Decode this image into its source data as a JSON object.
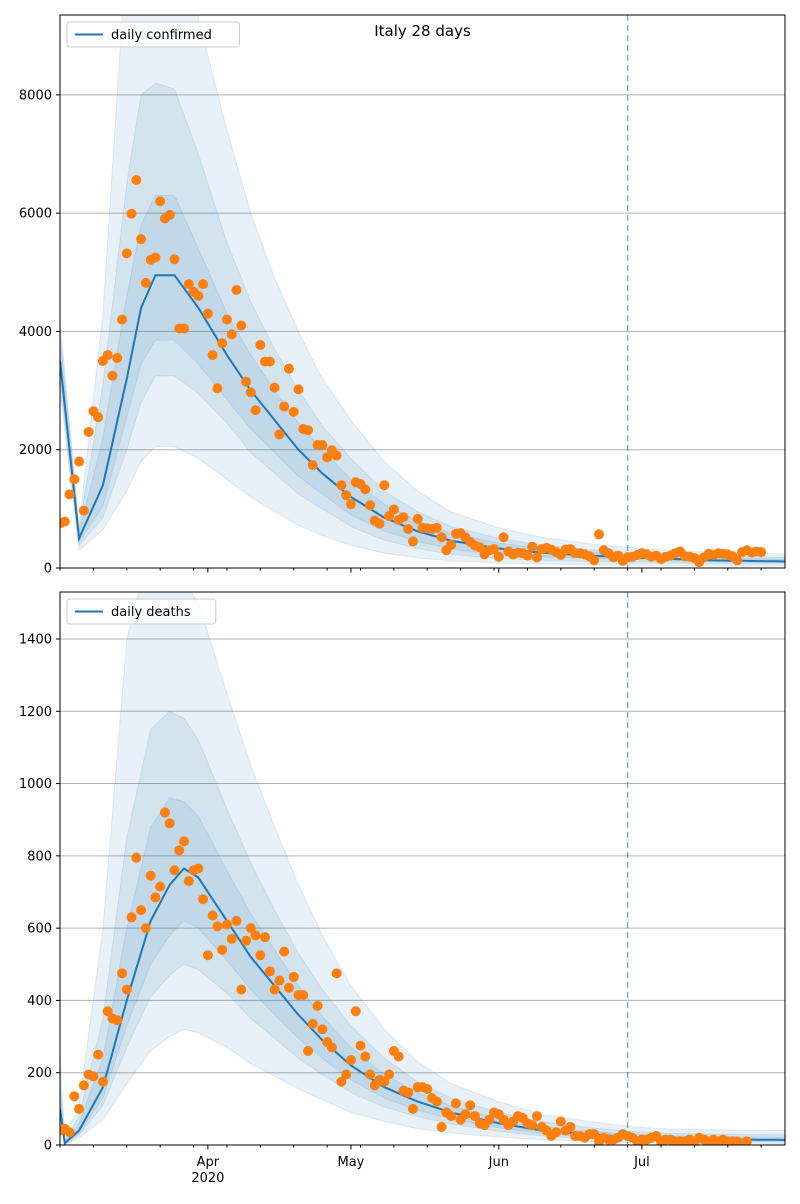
{
  "chart_data": [
    {
      "type": "line",
      "title": "Italy 28 days",
      "xlabel": "",
      "ylabel": "",
      "x_start": "2020-03-01",
      "x_end": "2020-07-31",
      "forecast_start": "2020-06-28",
      "x_ticks": [
        "Apr",
        "May",
        "Jun",
        "Jul"
      ],
      "x_tick_dates": [
        "2020-04-01",
        "2020-05-01",
        "2020-06-01",
        "2020-07-01"
      ],
      "x_year_label": "2020",
      "ylim": [
        0,
        9350
      ],
      "y_ticks": [
        0,
        2000,
        4000,
        6000,
        8000
      ],
      "grid": "y",
      "legend_position": "top-left",
      "colors": {
        "line": "#1f77b4",
        "band": "#1f77b4",
        "points": "#ff7f0e",
        "forecast_line": "#1f77b4"
      },
      "series": [
        {
          "name": "daily confirmed",
          "kind": "line",
          "x": [
            "2020-03-01",
            "2020-03-05",
            "2020-03-10",
            "2020-03-15",
            "2020-03-18",
            "2020-03-21",
            "2020-03-25",
            "2020-03-30",
            "2020-04-05",
            "2020-04-10",
            "2020-04-15",
            "2020-04-20",
            "2020-04-25",
            "2020-05-01",
            "2020-05-08",
            "2020-05-15",
            "2020-05-22",
            "2020-06-01",
            "2020-06-10",
            "2020-06-20",
            "2020-06-28",
            "2020-07-05",
            "2020-07-15",
            "2020-07-31"
          ],
          "y": [
            3500,
            500,
            1400,
            3200,
            4400,
            4950,
            4950,
            4400,
            3600,
            3000,
            2500,
            2000,
            1600,
            1200,
            850,
            620,
            460,
            330,
            260,
            210,
            180,
            160,
            130,
            110
          ],
          "bands": [
            {
              "lower": [
                3000,
                300,
                650,
                1300,
                1800,
                2050,
                2050,
                1850,
                1500,
                1200,
                950,
                720,
                550,
                380,
                250,
                170,
                120,
                85,
                65,
                55,
                50,
                45,
                38,
                33
              ],
              "upper": [
                4200,
                700,
                4300,
                10500,
                10500,
                10500,
                10500,
                9300,
                7400,
                6000,
                4900,
                4000,
                3200,
                2500,
                1800,
                1300,
                950,
                680,
                520,
                410,
                350,
                310,
                270,
                240
              ]
            },
            {
              "lower": [
                3150,
                380,
                850,
                2000,
                2800,
                3250,
                3250,
                2950,
                2450,
                1950,
                1600,
                1250,
                1000,
                700,
                470,
                330,
                230,
                160,
                130,
                110,
                100,
                90,
                78,
                70
              ],
              "upper": [
                4000,
                650,
                3100,
                6500,
                8000,
                8200,
                8100,
                7000,
                5500,
                4500,
                3700,
                3000,
                2400,
                1850,
                1300,
                950,
                700,
                500,
                390,
                310,
                270,
                240,
                200,
                180
              ]
            },
            {
              "lower": [
                3300,
                440,
                1050,
                2550,
                3450,
                3850,
                3850,
                3450,
                2850,
                2350,
                1950,
                1550,
                1250,
                900,
                620,
                450,
                320,
                230,
                190,
                160,
                145,
                130,
                110,
                100
              ],
              "upper": [
                3800,
                600,
                2200,
                4600,
                5800,
                6300,
                6300,
                5400,
                4300,
                3600,
                3000,
                2450,
                2000,
                1500,
                1080,
                790,
                590,
                420,
                330,
                270,
                230,
                200,
                170,
                150
              ]
            }
          ]
        },
        {
          "name": "",
          "kind": "scatter",
          "start": "2020-03-01",
          "values": [
            755,
            785,
            1245,
            1500,
            1800,
            970,
            2300,
            2650,
            2550,
            3500,
            3600,
            3250,
            3550,
            4200,
            5320,
            5990,
            6560,
            5560,
            4820,
            5210,
            5250,
            6200,
            5910,
            5970,
            5220,
            4050,
            4050,
            4800,
            4670,
            4600,
            4800,
            4300,
            3600,
            3040,
            3800,
            4200,
            3950,
            4700,
            4100,
            3150,
            2970,
            2670,
            3770,
            3490,
            3490,
            3050,
            2260,
            2730,
            3370,
            2640,
            3020,
            2350,
            2330,
            1740,
            2080,
            2080,
            1870,
            1990,
            1900,
            1400,
            1230,
            1080,
            1450,
            1420,
            1330,
            1060,
            800,
            750,
            1400,
            880,
            990,
            810,
            860,
            660,
            450,
            830,
            680,
            670,
            660,
            680,
            520,
            300,
            390,
            580,
            590,
            520,
            440,
            380,
            350,
            230,
            300,
            320,
            190,
            520,
            280,
            230,
            260,
            250,
            210,
            360,
            180,
            320,
            340,
            310,
            270,
            220,
            310,
            320,
            250,
            250,
            230,
            200,
            130,
            570,
            300,
            250,
            180,
            210,
            120,
            180,
            190,
            220,
            250,
            230,
            190,
            210,
            150,
            190,
            210,
            250,
            280,
            200,
            190,
            170,
            100,
            180,
            240,
            220,
            250,
            240,
            230,
            200,
            130,
            270,
            300,
            260,
            280,
            270
          ]
        }
      ]
    },
    {
      "type": "line",
      "title": "",
      "xlabel": "",
      "ylabel": "",
      "x_start": "2020-03-01",
      "x_end": "2020-07-31",
      "forecast_start": "2020-06-28",
      "x_ticks": [
        "Apr",
        "May",
        "Jun",
        "Jul"
      ],
      "x_tick_dates": [
        "2020-04-01",
        "2020-05-01",
        "2020-06-01",
        "2020-07-01"
      ],
      "x_year_label": "2020",
      "ylim": [
        0,
        1530
      ],
      "y_ticks": [
        0,
        200,
        400,
        600,
        800,
        1000,
        1200,
        1400
      ],
      "grid": "y",
      "legend_position": "top-left",
      "colors": {
        "line": "#1f77b4",
        "band": "#1f77b4",
        "points": "#ff7f0e",
        "forecast_line": "#1f77b4"
      },
      "series": [
        {
          "name": "daily deaths",
          "kind": "line",
          "x": [
            "2020-03-01",
            "2020-03-02",
            "2020-03-05",
            "2020-03-10",
            "2020-03-15",
            "2020-03-20",
            "2020-03-24",
            "2020-03-27",
            "2020-03-30",
            "2020-04-05",
            "2020-04-10",
            "2020-04-15",
            "2020-04-20",
            "2020-04-25",
            "2020-05-01",
            "2020-05-08",
            "2020-05-15",
            "2020-05-22",
            "2020-06-01",
            "2020-06-10",
            "2020-06-20",
            "2020-06-28",
            "2020-07-05",
            "2020-07-15",
            "2020-07-31"
          ],
          "y": [
            100,
            5,
            40,
            160,
            400,
            620,
            720,
            765,
            740,
            620,
            520,
            440,
            360,
            290,
            220,
            160,
            120,
            90,
            60,
            40,
            30,
            22,
            18,
            16,
            14
          ],
          "bands": [
            {
              "lower": [
                60,
                0,
                20,
                70,
                170,
                260,
                300,
                320,
                310,
                270,
                225,
                190,
                155,
                125,
                90,
                65,
                45,
                33,
                22,
                15,
                10,
                7,
                6,
                5,
                4
              ],
              "upper": [
                250,
                20,
                110,
                600,
                1400,
                1650,
                1600,
                1560,
                1500,
                1250,
                1050,
                880,
                720,
                580,
                440,
                320,
                230,
                170,
                120,
                85,
                65,
                52,
                45,
                42,
                40
              ]
            },
            {
              "lower": [
                75,
                2,
                28,
                110,
                270,
                410,
                470,
                500,
                485,
                420,
                350,
                295,
                240,
                195,
                145,
                105,
                78,
                58,
                38,
                25,
                18,
                13,
                11,
                9,
                8
              ],
              "upper": [
                180,
                12,
                80,
                350,
                850,
                1150,
                1200,
                1180,
                1120,
                930,
                780,
                650,
                530,
                430,
                330,
                240,
                175,
                130,
                90,
                65,
                48,
                38,
                33,
                30,
                28
              ]
            },
            {
              "lower": [
                85,
                3,
                33,
                130,
                330,
                500,
                580,
                620,
                600,
                510,
                430,
                360,
                295,
                240,
                180,
                130,
                96,
                72,
                48,
                32,
                23,
                17,
                14,
                12,
                11
              ],
              "upper": [
                140,
                8,
                60,
                240,
                600,
                880,
                960,
                950,
                910,
                760,
                640,
                540,
                440,
                355,
                270,
                195,
                145,
                108,
                74,
                52,
                38,
                30,
                26,
                23,
                21
              ]
            }
          ]
        },
        {
          "name": "",
          "kind": "scatter",
          "start": "2020-03-01",
          "values": [
            40,
            45,
            35,
            135,
            100,
            165,
            195,
            190,
            250,
            175,
            370,
            350,
            345,
            475,
            430,
            630,
            795,
            650,
            600,
            745,
            685,
            715,
            920,
            890,
            760,
            815,
            840,
            730,
            760,
            765,
            680,
            525,
            635,
            605,
            540,
            610,
            570,
            620,
            430,
            565,
            600,
            580,
            525,
            575,
            480,
            430,
            455,
            535,
            435,
            465,
            415,
            415,
            260,
            335,
            385,
            320,
            285,
            270,
            475,
            175,
            195,
            235,
            370,
            275,
            245,
            195,
            165,
            180,
            175,
            195,
            260,
            245,
            150,
            145,
            100,
            160,
            160,
            155,
            130,
            120,
            50,
            90,
            80,
            115,
            70,
            85,
            110,
            80,
            60,
            55,
            70,
            90,
            85,
            70,
            55,
            65,
            80,
            75,
            60,
            55,
            80,
            50,
            40,
            25,
            35,
            65,
            40,
            50,
            25,
            25,
            20,
            30,
            30,
            10,
            20,
            15,
            15,
            20,
            30,
            25,
            20,
            10,
            15,
            15,
            20,
            25,
            10,
            15,
            15,
            10,
            10,
            10,
            15,
            10,
            20,
            15,
            10,
            15,
            10,
            15,
            10,
            10,
            10,
            5,
            10
          ]
        }
      ]
    }
  ]
}
